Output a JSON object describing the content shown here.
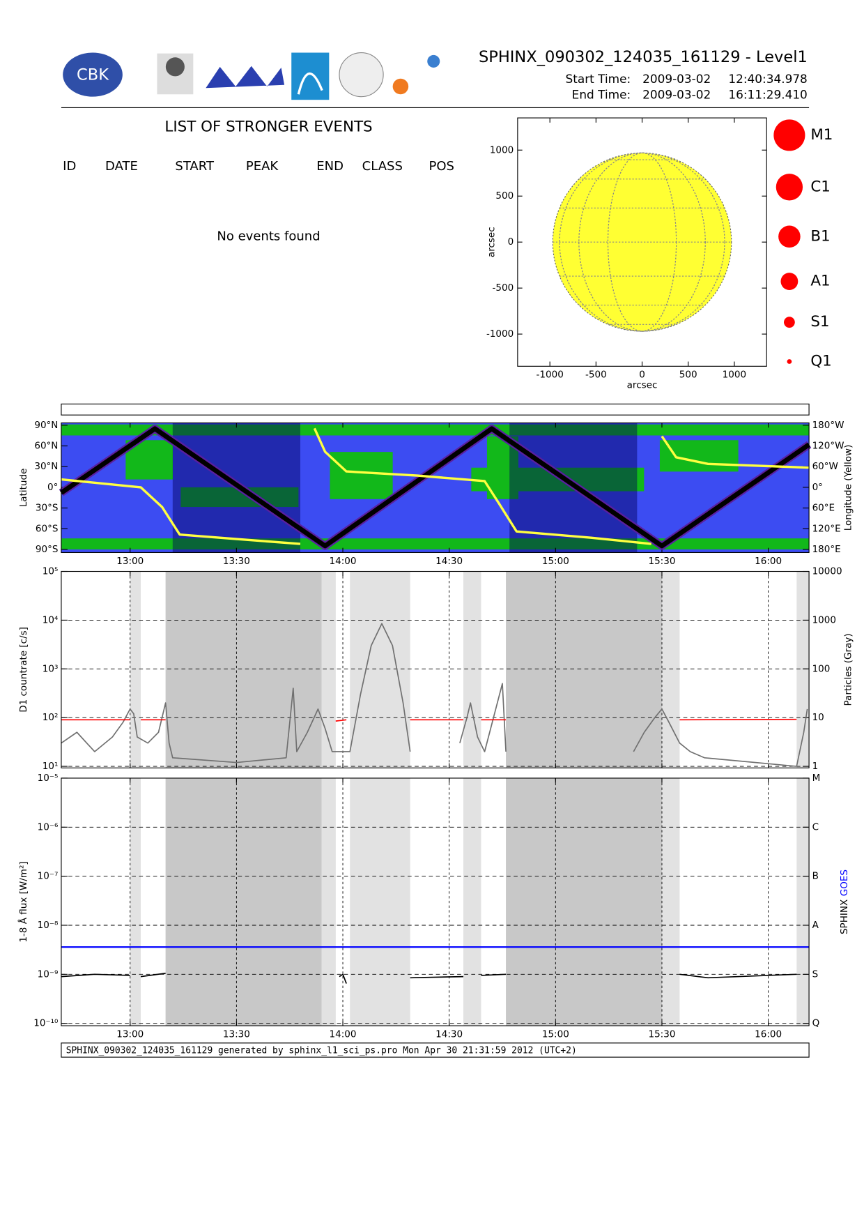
{
  "header": {
    "logo_text": "CBK",
    "title": "SPHINX_090302_124035_161129 - Level1",
    "start_label": "Start Time:",
    "start_date": "2009-03-02",
    "start_time": "12:40:34.978",
    "end_label": "End Time:",
    "end_date": "2009-03-02",
    "end_time": "16:11:29.410"
  },
  "events": {
    "title": "LIST OF STRONGER EVENTS",
    "columns": [
      "ID",
      "DATE",
      "START",
      "PEAK",
      "END",
      "CLASS",
      "POS"
    ],
    "message": "No events found"
  },
  "footer": "SPHINX_090302_124035_161129 generated by sphinx_l1_sci_ps.pro Mon Apr 30 21:31:59 2012 (UTC+2)",
  "chart_data": [
    {
      "type": "disk",
      "xlabel": "arcsec",
      "ylabel": "arcsec",
      "xlim": [
        -1350,
        1350
      ],
      "ylim": [
        -1350,
        1350
      ],
      "xticks": [
        -1000,
        -500,
        0,
        500,
        1000
      ],
      "yticks": [
        -1000,
        -500,
        0,
        500,
        1000
      ],
      "radius": 969,
      "color": "#ffff33",
      "legend": [
        "M1",
        "C1",
        "B1",
        "A1",
        "S1",
        "Q1"
      ],
      "legend_color": "#ff0000"
    },
    {
      "type": "map",
      "ylabel": "Latitude",
      "y2label": "Longitude (Yellow)",
      "xlim": [
        "12:40:34.978",
        "16:11:29.410"
      ],
      "xticks": [
        "13:00",
        "13:30",
        "14:00",
        "14:30",
        "15:00",
        "15:30",
        "16:00"
      ],
      "ylim": [
        -90,
        90
      ],
      "yticks": [
        {
          "value": -90,
          "label": "90°S"
        },
        {
          "value": -60,
          "label": "60°S"
        },
        {
          "value": -30,
          "label": "30°S"
        },
        {
          "value": 0,
          "label": "0°"
        },
        {
          "value": 30,
          "label": "30°N"
        },
        {
          "value": 60,
          "label": "60°N"
        },
        {
          "value": 90,
          "label": "90°N"
        }
      ],
      "y2lim": [
        -180,
        180
      ],
      "y2ticks": [
        {
          "value": -180,
          "label": "180°E"
        },
        {
          "value": -120,
          "label": "120°E"
        },
        {
          "value": -60,
          "label": "60°E"
        },
        {
          "value": 0,
          "label": "0°"
        },
        {
          "value": 60,
          "label": "60°W"
        },
        {
          "value": 120,
          "label": "120°W"
        },
        {
          "value": 180,
          "label": "180°W"
        }
      ],
      "shaded": {
        "dark": [
          [
            "13:12",
            "13:48"
          ],
          [
            "14:47",
            "15:23"
          ]
        ]
      },
      "series": [
        {
          "color": "#000000",
          "x": [
            "12:40:35",
            "13:07",
            "13:55",
            "14:42",
            "15:30",
            "16:11:29"
          ],
          "values": [
            -8,
            85,
            -85,
            85,
            -85,
            62
          ]
        },
        {
          "color": "#ffff40",
          "axis": "y2",
          "x": [
            "12:40:35",
            "13:03",
            "13:09",
            "13:14",
            "13:30",
            "13:48",
            "13:50",
            "13:52",
            "13:55",
            "14:01",
            "14:21",
            "14:40",
            "14:44",
            "14:49",
            "15:10",
            "15:27",
            "15:29",
            "15:30",
            "15:34",
            "15:43",
            "16:11:29"
          ],
          "values": [
            23,
            0,
            -57,
            -137,
            -150,
            -164,
            null,
            171,
            103,
            46,
            34,
            18,
            -46,
            -128,
            -146,
            -164,
            null,
            148,
            87,
            68,
            57
          ]
        }
      ]
    },
    {
      "type": "line",
      "ylabel": "D1 countrate [c/s]",
      "y2label": "Particles (Gray)",
      "grid": true,
      "xlim": [
        "12:40:34.978",
        "16:11:29.410"
      ],
      "ylog": true,
      "y2log": true,
      "ylim": [
        10,
        100000
      ],
      "yticks": [
        {
          "value": 10,
          "label": "10¹"
        },
        {
          "value": 100,
          "label": "10²"
        },
        {
          "value": 1000,
          "label": "10³"
        },
        {
          "value": 10000,
          "label": "10⁴"
        },
        {
          "value": 100000,
          "label": "10⁵"
        }
      ],
      "y2lim": [
        1,
        10000
      ],
      "y2ticks": [
        1,
        10,
        100,
        1000,
        10000
      ],
      "shaded": {
        "dark": [
          [
            "13:10",
            "13:54"
          ],
          [
            "14:46",
            "15:30"
          ]
        ],
        "light": [
          [
            "13:00",
            "13:03"
          ],
          [
            "13:54",
            "13:58"
          ],
          [
            "14:02",
            "14:19"
          ],
          [
            "14:34",
            "14:39"
          ],
          [
            "15:30",
            "15:35"
          ],
          [
            "16:08",
            "16:11:29"
          ]
        ]
      },
      "series": [
        {
          "color": "#707070",
          "axis": "y2",
          "x": [
            "12:40:35",
            "12:45",
            "12:50",
            "12:55",
            "12:58",
            "13:00",
            "13:01",
            "13:02",
            "13:05",
            "13:08",
            "13:10",
            "13:11",
            "13:12",
            "13:30",
            "13:44",
            "13:46",
            "13:47",
            "13:50",
            "13:53",
            "13:55",
            "13:57",
            "14:02",
            "14:05",
            "14:08",
            "14:11",
            "14:14",
            "14:17",
            "14:19",
            "14:26",
            "14:33",
            "14:35",
            "14:36",
            "14:38",
            "14:40",
            "14:45",
            "14:46",
            "15:04",
            "15:22",
            "15:25",
            "15:28",
            "15:30",
            "15:32",
            "15:35",
            "15:38",
            "15:42",
            "16:08",
            "16:10",
            "16:11"
          ],
          "values": [
            3,
            5,
            2,
            4,
            8,
            15,
            12,
            4,
            3,
            5,
            20,
            3,
            1.5,
            1.2,
            1.5,
            40,
            2,
            5,
            15,
            6,
            2,
            2,
            30,
            300,
            850,
            300,
            20,
            2,
            null,
            3,
            10,
            20,
            4,
            2,
            50,
            2,
            null,
            2,
            5,
            10,
            15,
            8,
            3,
            2,
            1.5,
            1,
            5,
            15
          ]
        },
        {
          "color": "#ff0000",
          "x": [
            "12:40:35",
            "13:00",
            "13:01",
            "13:03",
            "13:10",
            "13:30",
            "13:58",
            "14:01",
            "14:10",
            "14:19",
            "14:34",
            "14:36",
            "14:39",
            "14:46",
            "15:10",
            "15:35",
            "16:08"
          ],
          "values": [
            90,
            90,
            null,
            90,
            90,
            null,
            85,
            90,
            null,
            90,
            90,
            null,
            90,
            90,
            null,
            90,
            92
          ]
        }
      ]
    },
    {
      "type": "line",
      "ylabel": "1-8 Å flux [W/m²]",
      "grid": true,
      "ylog": true,
      "y2log": true,
      "xlim": [
        "12:40:34.978",
        "16:11:29.410"
      ],
      "xticks": [
        "13:00",
        "13:30",
        "14:00",
        "14:30",
        "15:00",
        "15:30",
        "16:00"
      ],
      "ylim": [
        1e-10,
        1e-05
      ],
      "yticks": [
        {
          "value": 1e-10,
          "label": "10⁻¹⁰"
        },
        {
          "value": 1e-09,
          "label": "10⁻⁹"
        },
        {
          "value": 1e-08,
          "label": "10⁻⁸"
        },
        {
          "value": 1e-07,
          "label": "10⁻⁷"
        },
        {
          "value": 1e-06,
          "label": "10⁻⁶"
        },
        {
          "value": 1e-05,
          "label": "10⁻⁵"
        }
      ],
      "y2lim": [
        1e-10,
        1e-05
      ],
      "y2ticks": [
        {
          "value": 1e-10,
          "label": "Q"
        },
        {
          "value": 1e-09,
          "label": "S"
        },
        {
          "value": 1e-08,
          "label": "A"
        },
        {
          "value": 1e-07,
          "label": "B"
        },
        {
          "value": 1e-06,
          "label": "C"
        },
        {
          "value": 1e-05,
          "label": "M"
        }
      ],
      "shaded": {
        "dark": [
          [
            "13:10",
            "13:54"
          ],
          [
            "14:46",
            "15:30"
          ]
        ],
        "light": [
          [
            "13:00",
            "13:03"
          ],
          [
            "13:54",
            "13:58"
          ],
          [
            "14:02",
            "14:19"
          ],
          [
            "14:34",
            "14:39"
          ],
          [
            "15:30",
            "15:35"
          ],
          [
            "16:08",
            "16:11:29"
          ]
        ]
      },
      "series": [
        {
          "name": "SPHINX",
          "color": "#000000",
          "x": [
            "12:40:35",
            "12:50",
            "13:00",
            "13:01",
            "13:03",
            "13:10",
            "13:30",
            "13:59",
            "14:00",
            "14:01",
            "14:10",
            "14:19",
            "14:34",
            "14:36",
            "14:39",
            "14:46",
            "15:10",
            "15:35",
            "15:43",
            "16:08"
          ],
          "values": [
            9e-10,
            1e-09,
            9.5e-10,
            null,
            9e-10,
            1.05e-09,
            null,
            9e-10,
            1e-09,
            6.5e-10,
            null,
            8.5e-10,
            9e-10,
            null,
            9.5e-10,
            1e-09,
            null,
            1e-09,
            8.5e-10,
            1e-09
          ]
        },
        {
          "name": "GOES",
          "color": "#0000ff",
          "x": [
            "12:40:35",
            "16:11:29"
          ],
          "values": [
            3.6e-09,
            3.6e-09
          ]
        }
      ]
    }
  ]
}
